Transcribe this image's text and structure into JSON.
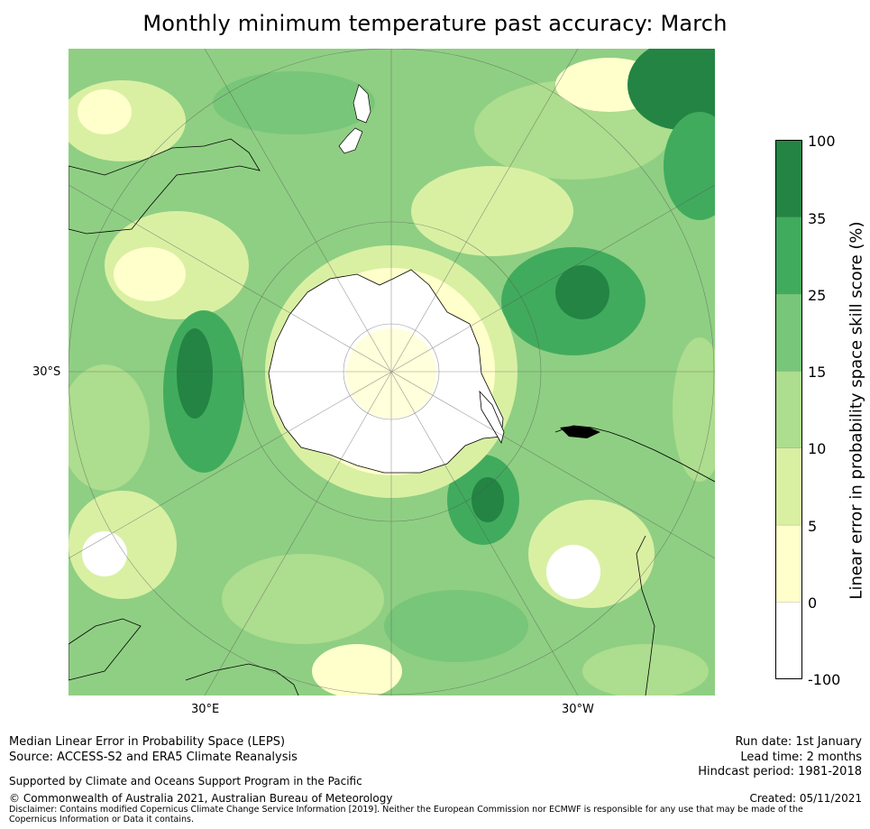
{
  "title": "Monthly minimum temperature past accuracy: March",
  "map": {
    "lat_label": "30°S",
    "lon_labels": {
      "east": "30°E",
      "west": "30°W"
    },
    "colors": {
      "ocean_mid": "#8fcf83",
      "ice": "#ffffff"
    }
  },
  "colorbar": {
    "label": "Linear error in probability space skill score (%)",
    "ticks": [
      "100",
      "35",
      "25",
      "15",
      "10",
      "5",
      "0",
      "-100"
    ],
    "bins": [
      {
        "range": "35 to 100",
        "color": "#238443"
      },
      {
        "range": "25 to 35",
        "color": "#41ab5d"
      },
      {
        "range": "15 to 25",
        "color": "#78c679"
      },
      {
        "range": "10 to 15",
        "color": "#addd8e"
      },
      {
        "range": "5 to 10",
        "color": "#d9f0a3"
      },
      {
        "range": "0 to 5",
        "color": "#ffffcc"
      },
      {
        "range": "-100 to 0",
        "color": "#ffffff"
      }
    ]
  },
  "footer": {
    "left": {
      "line1": "Median Linear Error in Probability Space (LEPS)",
      "line2": "Source: ACCESS-S2 and ERA5 Climate Reanalysis",
      "support": "Supported by Climate and Oceans Support Program in the Pacific",
      "copyright": "© Commonwealth of Australia 2021, Australian Bureau of Meteorology",
      "disclaimer": "Disclaimer: Contains modified Copernicus Climate Change Service Information [2019]. Neither the European Commission nor ECMWF is responsible for any use that may be made of the Copernicus Information or Data it contains."
    },
    "right": {
      "run_date": "Run date: 1st January",
      "lead_time": "Lead time: 2 months",
      "hindcast": "Hindcast period: 1981-2018",
      "created": "Created: 05/11/2021"
    }
  }
}
